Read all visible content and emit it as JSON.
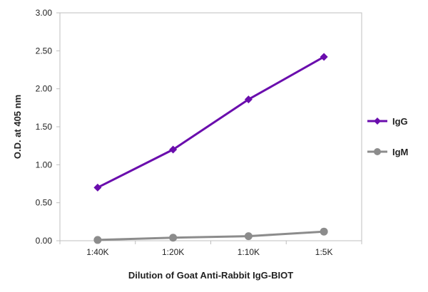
{
  "chart_data": {
    "type": "line",
    "categories": [
      "1:40K",
      "1:20K",
      "1:10K",
      "1:5K"
    ],
    "series": [
      {
        "name": "IgG",
        "values": [
          0.7,
          1.2,
          1.86,
          2.42
        ],
        "color": "#6a0dad",
        "marker": "diamond"
      },
      {
        "name": "IgM",
        "values": [
          0.01,
          0.04,
          0.06,
          0.12
        ],
        "color": "#8c8c8c",
        "marker": "circle"
      }
    ],
    "title": "",
    "xlabel": "Dilution of Goat Anti-Rabbit IgG-BIOT",
    "ylabel": "O.D. at 405 nm",
    "ylim": [
      0,
      3.0
    ],
    "yticks": [
      "0.00",
      "0.50",
      "1.00",
      "1.50",
      "2.00",
      "2.50",
      "3.00"
    ],
    "grid": false,
    "legend": "right"
  }
}
